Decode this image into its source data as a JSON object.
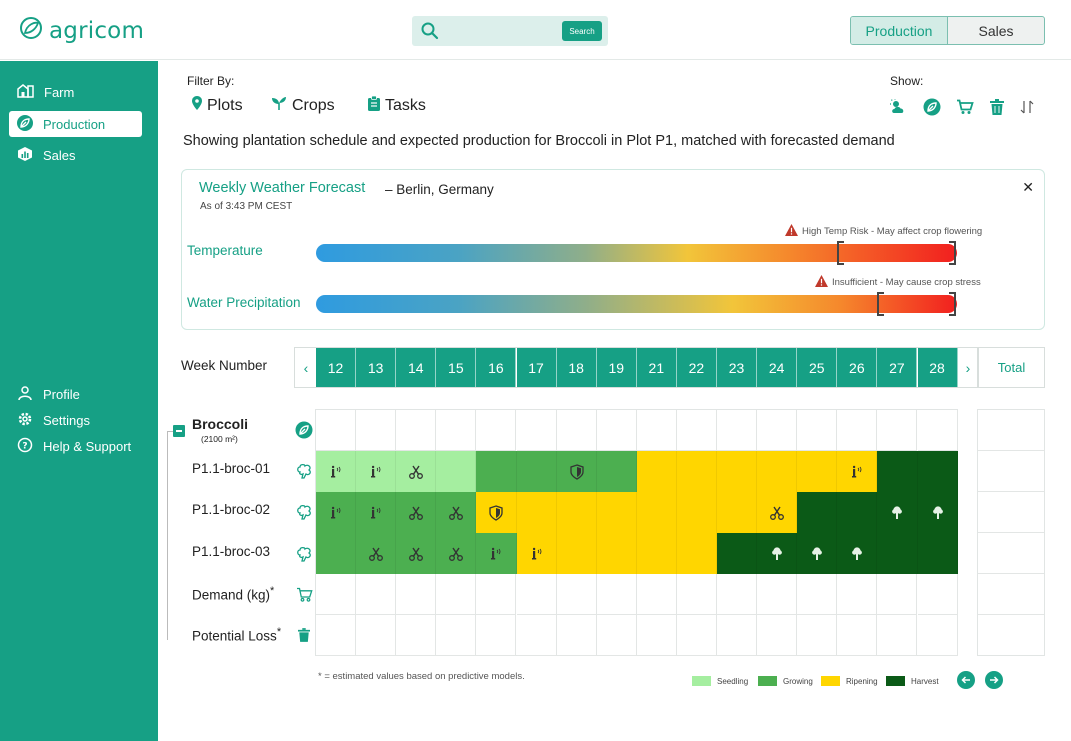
{
  "app": {
    "logo_text": "agricom"
  },
  "header": {
    "search_placeholder": "",
    "search_button": "Search",
    "toggle": {
      "production": "Production",
      "sales": "Sales",
      "active": "production"
    }
  },
  "sidebar": {
    "top": [
      {
        "label": "Farm",
        "icon": "farm-icon",
        "active": false
      },
      {
        "label": "Production",
        "icon": "leaf-icon",
        "active": true
      },
      {
        "label": "Sales",
        "icon": "sales-icon",
        "active": false
      }
    ],
    "bottom": [
      {
        "label": "Profile",
        "icon": "user-icon"
      },
      {
        "label": "Settings",
        "icon": "gear-icon"
      },
      {
        "label": "Help & Support",
        "icon": "help-icon"
      }
    ]
  },
  "filters": {
    "label": "Filter By:",
    "items": [
      {
        "label": "Plots",
        "icon": "location-pin-icon"
      },
      {
        "label": "Crops",
        "icon": "sprout-icon"
      },
      {
        "label": "Tasks",
        "icon": "clipboard-icon"
      }
    ]
  },
  "show": {
    "label": "Show:",
    "icons": [
      "weather-icon",
      "leaf-icon",
      "cart-icon",
      "trash-icon",
      "sort-icon"
    ]
  },
  "description": "Showing plantation schedule and expected production for Broccoli in Plot P1, matched with forecasted demand",
  "weather": {
    "title": "Weekly Weather Forecast",
    "location": "– Berlin, Germany",
    "as_of": "As of 3:43 PM CEST",
    "temperature": {
      "label": "Temperature",
      "warning": "High Temp Risk - May affect crop flowering"
    },
    "precipitation": {
      "label": "Water Precipitation",
      "warning": "Insufficient - May cause crop stress"
    },
    "colors": {
      "cool": "#2f9be0",
      "mid": "#f2c53a",
      "hot": "#f21f1f"
    }
  },
  "grid": {
    "week_label": "Week Number",
    "weeks": [
      "12",
      "13",
      "14",
      "15",
      "16",
      "17",
      "18",
      "19",
      "21",
      "22",
      "23",
      "24",
      "25",
      "26",
      "27",
      "28"
    ],
    "total_label": "Total",
    "crop": {
      "name": "Broccoli",
      "area": "(2100 m²)"
    },
    "rows": [
      {
        "label": "P1.1-broc-01",
        "stages": [
          "seedling",
          "seedling",
          "seedling",
          "seedling",
          "growing",
          "growing",
          "growing",
          "growing",
          "ripening",
          "ripening",
          "ripening",
          "ripening",
          "ripening",
          "ripening",
          "harvest",
          "harvest"
        ],
        "icons": [
          "irrigation",
          "irrigation",
          "prune",
          null,
          null,
          null,
          "shield",
          null,
          null,
          null,
          null,
          null,
          null,
          "irrigation",
          null,
          null
        ]
      },
      {
        "label": "P1.1-broc-02",
        "stages": [
          "growing",
          "growing",
          "growing",
          "growing",
          "ripening",
          "ripening",
          "ripening",
          "ripening",
          "ripening",
          "ripening",
          "ripening",
          "ripening",
          "harvest",
          "harvest",
          "harvest",
          "harvest"
        ],
        "icons": [
          "irrigation",
          "irrigation",
          "prune",
          "prune",
          "shield",
          null,
          null,
          null,
          null,
          null,
          null,
          "prune",
          null,
          null,
          "broccoli",
          "broccoli"
        ]
      },
      {
        "label": "P1.1-broc-03",
        "stages": [
          "growing",
          "growing",
          "growing",
          "growing",
          "growing",
          "ripening",
          "ripening",
          "ripening",
          "ripening",
          "ripening",
          "harvest",
          "harvest",
          "harvest",
          "harvest",
          "harvest",
          "harvest"
        ],
        "icons": [
          null,
          "prune",
          "prune",
          "prune",
          "irrigation",
          "irrigation",
          null,
          null,
          null,
          null,
          null,
          "broccoli",
          "broccoli",
          "broccoli",
          null,
          null
        ]
      }
    ],
    "demand_label": "Demand (kg)",
    "loss_label": "Potential Loss",
    "estimate_mark": "*"
  },
  "footnote": "* = estimated values based on predictive models.",
  "legend": [
    {
      "label": "Seedling",
      "color": "#a5eea0"
    },
    {
      "label": "Growing",
      "color": "#4caf50"
    },
    {
      "label": "Ripening",
      "color": "#ffd600"
    },
    {
      "label": "Harvest",
      "color": "#0b5a17"
    }
  ],
  "colors": {
    "brand": "#16a085",
    "seedling": "#a5eea0",
    "growing": "#4caf50",
    "ripening": "#ffd600",
    "harvest": "#0b5a17"
  }
}
